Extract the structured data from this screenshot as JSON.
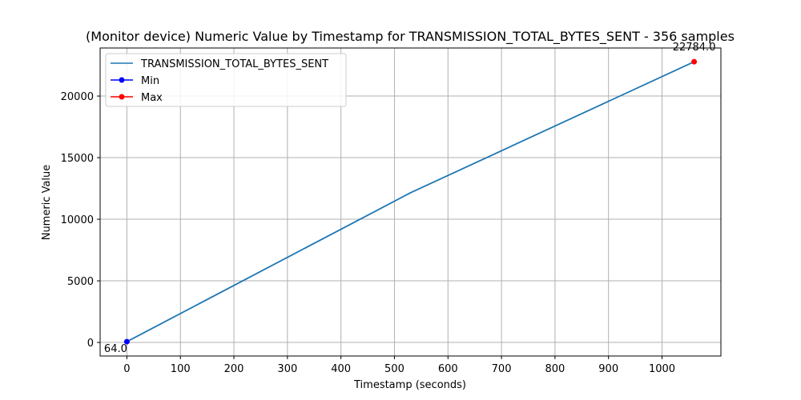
{
  "chart_data": {
    "type": "line",
    "title": "(Monitor device) Numeric Value by Timestamp for TRANSMISSION_TOTAL_BYTES_SENT - 356 samples",
    "xlabel": "Timestamp (seconds)",
    "ylabel": "Numeric Value",
    "xlim": [
      -50,
      1110
    ],
    "ylim": [
      -1100,
      23900
    ],
    "xticks": [
      0,
      100,
      200,
      300,
      400,
      500,
      600,
      700,
      800,
      900,
      1000
    ],
    "yticks": [
      0,
      5000,
      10000,
      15000,
      20000
    ],
    "grid": true,
    "legend_position": "top-left",
    "series": [
      {
        "name": "TRANSMISSION_TOTAL_BYTES_SENT",
        "color": "#1f77b4",
        "x": [
          0,
          530,
          1060
        ],
        "y": [
          64,
          12150,
          22784
        ]
      }
    ],
    "markers": [
      {
        "name": "Min",
        "color": "#0000ff",
        "x": 0,
        "y": 64,
        "label": "64.0"
      },
      {
        "name": "Max",
        "color": "#ff0000",
        "x": 1060,
        "y": 22784,
        "label": "22784.0"
      }
    ]
  }
}
